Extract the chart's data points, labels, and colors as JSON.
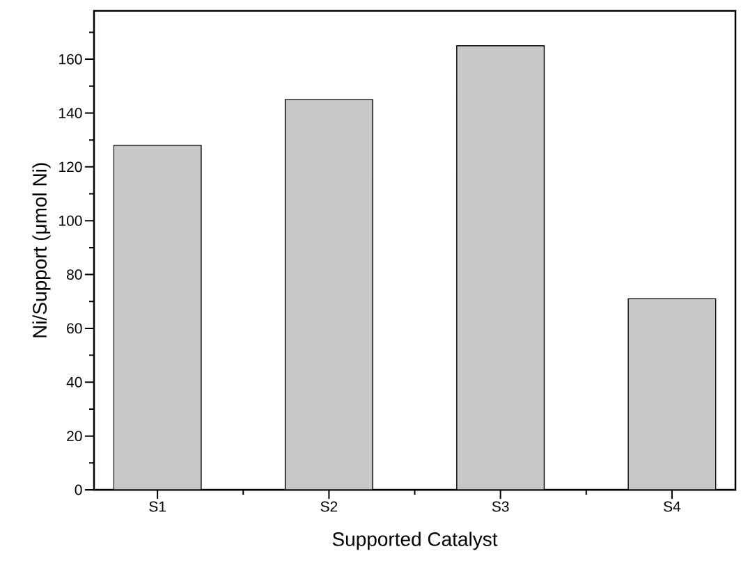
{
  "chart_data": {
    "type": "bar",
    "xlabel": "Supported Catalyst",
    "ylabel": "Ni/Support (μmol Ni)",
    "categories": [
      "S1",
      "S2",
      "S3",
      "S4"
    ],
    "values": [
      128,
      145,
      165,
      71
    ],
    "color": "#c8c8c8",
    "ylim": [
      0,
      178
    ],
    "yticks": [
      0,
      20,
      40,
      60,
      80,
      100,
      120,
      140,
      160
    ],
    "grid": false
  }
}
